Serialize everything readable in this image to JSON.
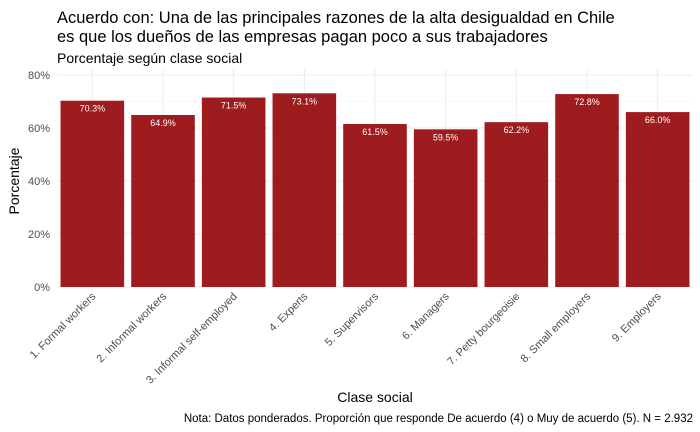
{
  "chart_data": {
    "type": "bar",
    "title": [
      "Acuerdo con: Una de las principales razones de la alta desigualdad en Chile",
      "es que los dueños de las empresas pagan poco a sus trabajadores"
    ],
    "subtitle": "Porcentaje según clase social",
    "xlabel": "Clase social",
    "ylabel": "Porcentaje",
    "caption": "Nota: Datos ponderados. Proporción que responde De acuerdo (4) o Muy de acuerdo (5). N = 2.932",
    "categories": [
      "1. Formal workers",
      "2. Informal workers",
      "3. Informal self-employed",
      "4. Experts",
      "5. Supervisors",
      "6. Managers",
      "7. Petty bourgeoisie",
      "8. Small employers",
      "9. Employers"
    ],
    "values": [
      70.3,
      64.9,
      71.5,
      73.1,
      61.5,
      59.5,
      62.2,
      72.8,
      66.0
    ],
    "data_labels": [
      "70.3%",
      "64.9%",
      "71.5%",
      "73.1%",
      "61.5%",
      "59.5%",
      "62.2%",
      "72.8%",
      "66.0%"
    ],
    "ylim": [
      0,
      80
    ],
    "yticks": [
      0,
      20,
      40,
      60,
      80
    ],
    "ytick_labels": [
      "0%",
      "20%",
      "40%",
      "60%",
      "80%"
    ],
    "grid": true,
    "legend": "none",
    "bar_color": "#9e1b1e"
  }
}
